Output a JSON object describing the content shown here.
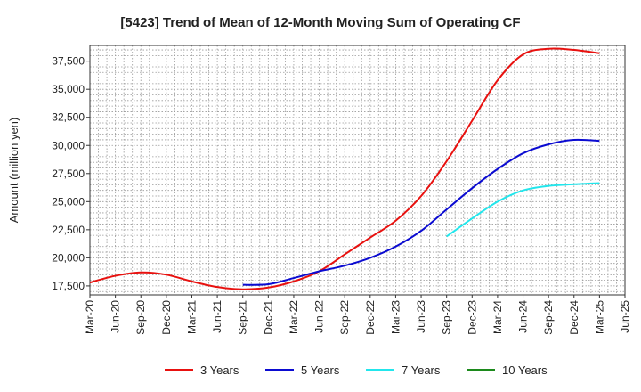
{
  "chart_data": {
    "type": "line",
    "title": "[5423]  Trend of Mean of 12-Month Moving Sum of Operating CF",
    "xlabel": "",
    "ylabel": "Amount (million yen)",
    "ylim": [
      16700,
      38900
    ],
    "yticks": [
      17500,
      20000,
      22500,
      25000,
      27500,
      30000,
      32500,
      35000,
      37500
    ],
    "ytick_labels": [
      "17,500",
      "20,000",
      "22,500",
      "25,000",
      "27,500",
      "30,000",
      "32,500",
      "35,000",
      "37,500"
    ],
    "x": [
      "Mar-20",
      "Jun-20",
      "Sep-20",
      "Dec-20",
      "Mar-21",
      "Jun-21",
      "Sep-21",
      "Dec-21",
      "Mar-22",
      "Jun-22",
      "Sep-22",
      "Dec-22",
      "Mar-23",
      "Jun-23",
      "Sep-23",
      "Dec-23",
      "Mar-24",
      "Jun-24",
      "Sep-24",
      "Dec-24",
      "Mar-25",
      "Jun-25"
    ],
    "grid": true,
    "legend_position": "bottom",
    "series": [
      {
        "name": "3 Years",
        "color": "#e8110f",
        "values": [
          17800,
          18400,
          18700,
          18500,
          17900,
          17400,
          17200,
          17350,
          17900,
          18800,
          20300,
          21800,
          23300,
          25500,
          28600,
          32200,
          35800,
          38100,
          38600,
          38500,
          38200,
          null
        ]
      },
      {
        "name": "5 Years",
        "color": "#0b0bd1",
        "values": [
          null,
          null,
          null,
          null,
          null,
          null,
          17600,
          17650,
          18200,
          18800,
          19300,
          20000,
          21000,
          22400,
          24300,
          26200,
          27900,
          29300,
          30100,
          30500,
          30400,
          null
        ]
      },
      {
        "name": "7 Years",
        "color": "#22e6ec",
        "values": [
          null,
          null,
          null,
          null,
          null,
          null,
          null,
          null,
          null,
          null,
          null,
          null,
          null,
          null,
          21900,
          23500,
          25000,
          26000,
          26400,
          26550,
          26650,
          null
        ]
      },
      {
        "name": "10 Years",
        "color": "#1c8a1c",
        "values": [
          null,
          null,
          null,
          null,
          null,
          null,
          null,
          null,
          null,
          null,
          null,
          null,
          null,
          null,
          null,
          null,
          null,
          null,
          null,
          null,
          null,
          null
        ]
      }
    ]
  }
}
